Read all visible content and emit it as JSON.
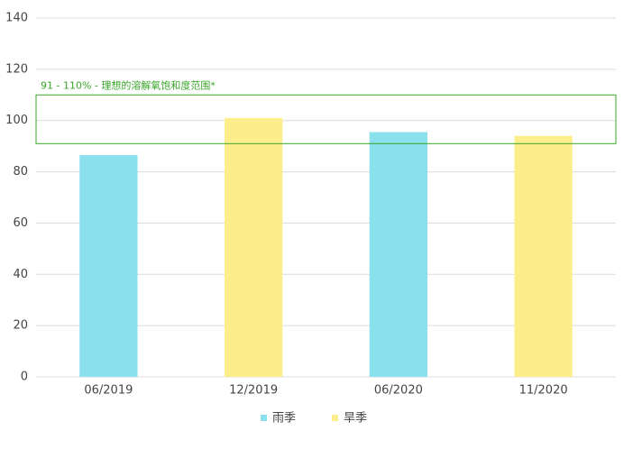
{
  "chart_data": {
    "type": "bar",
    "categories": [
      "06/2019",
      "12/2019",
      "06/2020",
      "11/2020"
    ],
    "series": [
      {
        "name": "雨季",
        "color": "#8ae0ec",
        "values": [
          86.5,
          null,
          95.5,
          null
        ]
      },
      {
        "name": "旱季",
        "color": "#fdee8b",
        "values": [
          null,
          101,
          null,
          94
        ]
      }
    ],
    "ylim": [
      0,
      140
    ],
    "yticks": [
      0,
      20,
      40,
      60,
      80,
      100,
      120,
      140
    ],
    "grid": true,
    "band": {
      "from": 91,
      "to": 110,
      "label": "91 - 110% - 理想的溶解氧饱和度范围*",
      "color": "#3aa52a"
    }
  }
}
